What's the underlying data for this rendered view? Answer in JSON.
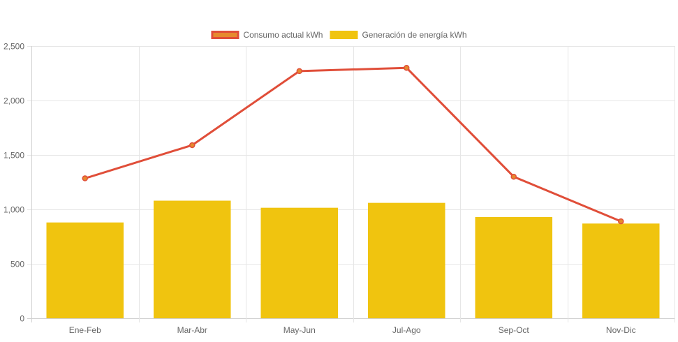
{
  "chart_data": {
    "type": "bar",
    "title": "",
    "xlabel": "",
    "ylabel": "",
    "ylim": [
      0,
      2500
    ],
    "yticks": [
      0,
      500,
      1000,
      1500,
      2000,
      2500
    ],
    "ytick_labels": [
      "0",
      "500",
      "1,000",
      "1,500",
      "2,000",
      "2,500"
    ],
    "grid": true,
    "legend_position": "top-center",
    "categories": [
      "Ene-Feb",
      "Mar-Abr",
      "May-Jun",
      "Jul-Ago",
      "Sep-Oct",
      "Nov-Dic"
    ],
    "series": [
      {
        "name": "Consumo actual kWh",
        "kind": "line",
        "color": "#e04e39",
        "fill": "#e68a2e",
        "values": [
          1285,
          1590,
          2270,
          2300,
          1300,
          890
        ]
      },
      {
        "name": "Generación de energía kWh",
        "kind": "bar",
        "color": "#f0c40f",
        "values": [
          880,
          1080,
          1015,
          1060,
          930,
          870
        ]
      }
    ]
  }
}
